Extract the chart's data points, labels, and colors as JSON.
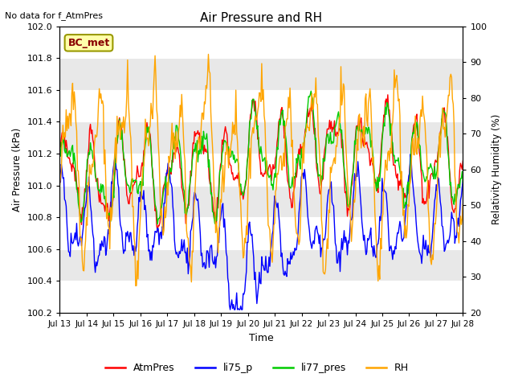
{
  "title": "Air Pressure and RH",
  "top_left_note": "No data for f_AtmPres",
  "station_label": "BC_met",
  "ylabel_left": "Air Pressure (kPa)",
  "ylabel_right": "Relativity Humidity (%)",
  "xlabel": "Time",
  "ylim_left": [
    100.2,
    102.0
  ],
  "ylim_right": [
    20,
    100
  ],
  "yticks_left": [
    100.2,
    100.4,
    100.6,
    100.8,
    101.0,
    101.2,
    101.4,
    101.6,
    101.8,
    102.0
  ],
  "yticks_right": [
    20,
    30,
    40,
    50,
    60,
    70,
    80,
    90,
    100
  ],
  "xtick_labels": [
    "Jul 13",
    "Jul 14",
    "Jul 15",
    "Jul 16",
    "Jul 17",
    "Jul 18",
    "Jul 19",
    "Jul 20",
    "Jul 21",
    "Jul 22",
    "Jul 23",
    "Jul 24",
    "Jul 25",
    "Jul 26",
    "Jul 27",
    "Jul 28"
  ],
  "colors": {
    "AtmPres": "#ff0000",
    "li75_p": "#0000ff",
    "li77_pres": "#00cc00",
    "RH": "#ffa500"
  },
  "legend_labels": [
    "AtmPres",
    "li75_p",
    "li77_pres",
    "RH"
  ],
  "plot_bg_color": "#e8e8e8",
  "band_color": "#d8d8d8",
  "grid_color": "#ffffff",
  "fig_bg_color": "#ffffff"
}
